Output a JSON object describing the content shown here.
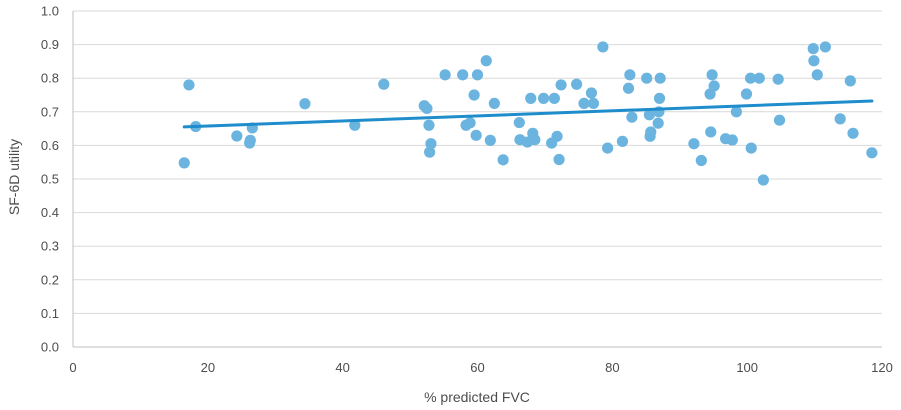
{
  "chart_data": {
    "type": "scatter",
    "xlabel": "% predicted FVC",
    "ylabel": "SF-6D utility",
    "xlim": [
      0,
      120
    ],
    "ylim": [
      0.0,
      1.0
    ],
    "x_ticks": [
      "0",
      "20",
      "40",
      "60",
      "80",
      "100",
      "120"
    ],
    "y_ticks": [
      "0.0",
      "0.1",
      "0.2",
      "0.3",
      "0.4",
      "0.5",
      "0.6",
      "0.7",
      "0.8",
      "0.9",
      "1.0"
    ],
    "grid": "horizontal",
    "marker_color": "#6cb4e0",
    "trendline_color": "#1f8ccc",
    "trendline": {
      "x": [
        16.5,
        118.5
      ],
      "y": [
        0.655,
        0.732
      ]
    },
    "points": [
      {
        "x": 16.5,
        "y": 0.548
      },
      {
        "x": 17.2,
        "y": 0.78
      },
      {
        "x": 18.2,
        "y": 0.656
      },
      {
        "x": 24.3,
        "y": 0.628
      },
      {
        "x": 26.2,
        "y": 0.607
      },
      {
        "x": 26.3,
        "y": 0.615
      },
      {
        "x": 26.6,
        "y": 0.652
      },
      {
        "x": 34.4,
        "y": 0.724
      },
      {
        "x": 41.8,
        "y": 0.66
      },
      {
        "x": 46.1,
        "y": 0.782
      },
      {
        "x": 52.1,
        "y": 0.718
      },
      {
        "x": 52.5,
        "y": 0.71
      },
      {
        "x": 52.8,
        "y": 0.66
      },
      {
        "x": 52.9,
        "y": 0.58
      },
      {
        "x": 53.1,
        "y": 0.605
      },
      {
        "x": 55.2,
        "y": 0.81
      },
      {
        "x": 57.8,
        "y": 0.81
      },
      {
        "x": 58.3,
        "y": 0.66
      },
      {
        "x": 58.9,
        "y": 0.667
      },
      {
        "x": 59.5,
        "y": 0.75
      },
      {
        "x": 59.8,
        "y": 0.63
      },
      {
        "x": 60.0,
        "y": 0.81
      },
      {
        "x": 61.3,
        "y": 0.852
      },
      {
        "x": 61.9,
        "y": 0.615
      },
      {
        "x": 62.5,
        "y": 0.725
      },
      {
        "x": 63.8,
        "y": 0.557
      },
      {
        "x": 66.2,
        "y": 0.668
      },
      {
        "x": 66.3,
        "y": 0.617
      },
      {
        "x": 67.4,
        "y": 0.61
      },
      {
        "x": 67.9,
        "y": 0.74
      },
      {
        "x": 68.2,
        "y": 0.636
      },
      {
        "x": 68.5,
        "y": 0.617
      },
      {
        "x": 69.8,
        "y": 0.74
      },
      {
        "x": 71.0,
        "y": 0.607
      },
      {
        "x": 71.4,
        "y": 0.74
      },
      {
        "x": 71.8,
        "y": 0.627
      },
      {
        "x": 72.1,
        "y": 0.558
      },
      {
        "x": 72.4,
        "y": 0.78
      },
      {
        "x": 74.7,
        "y": 0.782
      },
      {
        "x": 75.8,
        "y": 0.725
      },
      {
        "x": 76.9,
        "y": 0.756
      },
      {
        "x": 77.2,
        "y": 0.725
      },
      {
        "x": 78.6,
        "y": 0.893
      },
      {
        "x": 79.3,
        "y": 0.592
      },
      {
        "x": 81.5,
        "y": 0.612
      },
      {
        "x": 82.4,
        "y": 0.77
      },
      {
        "x": 82.6,
        "y": 0.81
      },
      {
        "x": 82.9,
        "y": 0.684
      },
      {
        "x": 85.1,
        "y": 0.8
      },
      {
        "x": 85.5,
        "y": 0.691
      },
      {
        "x": 85.6,
        "y": 0.627
      },
      {
        "x": 85.7,
        "y": 0.64
      },
      {
        "x": 86.8,
        "y": 0.666
      },
      {
        "x": 86.9,
        "y": 0.7
      },
      {
        "x": 87.0,
        "y": 0.74
      },
      {
        "x": 87.1,
        "y": 0.8
      },
      {
        "x": 92.1,
        "y": 0.605
      },
      {
        "x": 93.2,
        "y": 0.555
      },
      {
        "x": 94.5,
        "y": 0.753
      },
      {
        "x": 94.6,
        "y": 0.64
      },
      {
        "x": 94.8,
        "y": 0.81
      },
      {
        "x": 95.1,
        "y": 0.777
      },
      {
        "x": 96.8,
        "y": 0.62
      },
      {
        "x": 97.8,
        "y": 0.616
      },
      {
        "x": 98.4,
        "y": 0.7
      },
      {
        "x": 99.9,
        "y": 0.753
      },
      {
        "x": 100.5,
        "y": 0.8
      },
      {
        "x": 100.6,
        "y": 0.592
      },
      {
        "x": 101.8,
        "y": 0.8
      },
      {
        "x": 102.4,
        "y": 0.497
      },
      {
        "x": 104.6,
        "y": 0.797
      },
      {
        "x": 104.8,
        "y": 0.675
      },
      {
        "x": 109.8,
        "y": 0.888
      },
      {
        "x": 109.9,
        "y": 0.852
      },
      {
        "x": 110.4,
        "y": 0.81
      },
      {
        "x": 111.6,
        "y": 0.893
      },
      {
        "x": 113.8,
        "y": 0.679
      },
      {
        "x": 115.3,
        "y": 0.792
      },
      {
        "x": 115.7,
        "y": 0.636
      },
      {
        "x": 118.5,
        "y": 0.578
      }
    ]
  }
}
